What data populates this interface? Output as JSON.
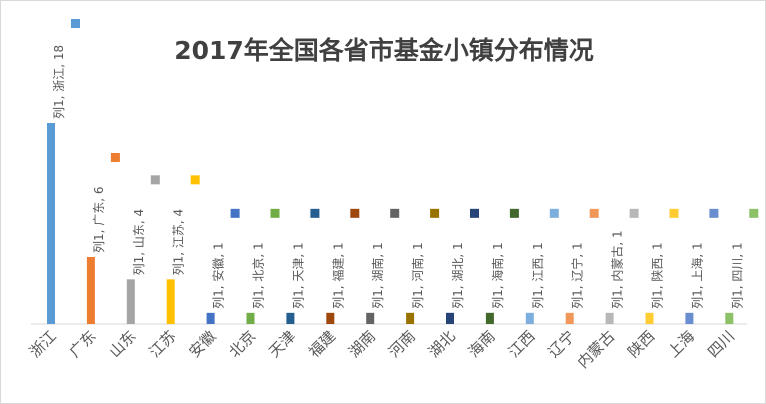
{
  "chart_data": {
    "type": "bar",
    "title": "2017年全国各省市基金小镇分布情况",
    "series_name": "列1",
    "categories": [
      "浙江",
      "广东",
      "山东",
      "江苏",
      "安徽",
      "北京",
      "天津",
      "福建",
      "湖南",
      "河南",
      "湖北",
      "海南",
      "江西",
      "辽宁",
      "内蒙古",
      "陕西",
      "上海",
      "四川"
    ],
    "values": [
      18,
      6,
      4,
      4,
      1,
      1,
      1,
      1,
      1,
      1,
      1,
      1,
      1,
      1,
      1,
      1,
      1,
      1
    ],
    "colors": [
      "#5b9bd5",
      "#ed7d31",
      "#a5a5a5",
      "#ffc000",
      "#4472c4",
      "#70ad47",
      "#255e91",
      "#9e480e",
      "#636363",
      "#997300",
      "#264478",
      "#43682b",
      "#7cafdd",
      "#f1975a",
      "#b7b7b7",
      "#ffcd33",
      "#698ed0",
      "#8cc168"
    ],
    "data_labels": [
      "列1, 浙江, 18",
      "列1, 广东, 6",
      "列1, 山东, 4",
      "列1, 江苏, 4",
      "列1, 安徽, 1",
      "列1, 北京, 1",
      "列1, 天津, 1",
      "列1, 福建, 1",
      "列1, 湖南, 1",
      "列1, 河南, 1",
      "列1, 湖北, 1",
      "列1, 海南, 1",
      "列1, 江西, 1",
      "列1, 辽宁, 1",
      "列1, 内蒙古, 1",
      "列1, 陕西, 1",
      "列1, 上海, 1",
      "列1, 四川, 1"
    ],
    "ylim": [
      0,
      18
    ],
    "grid": false,
    "legend": "none"
  }
}
